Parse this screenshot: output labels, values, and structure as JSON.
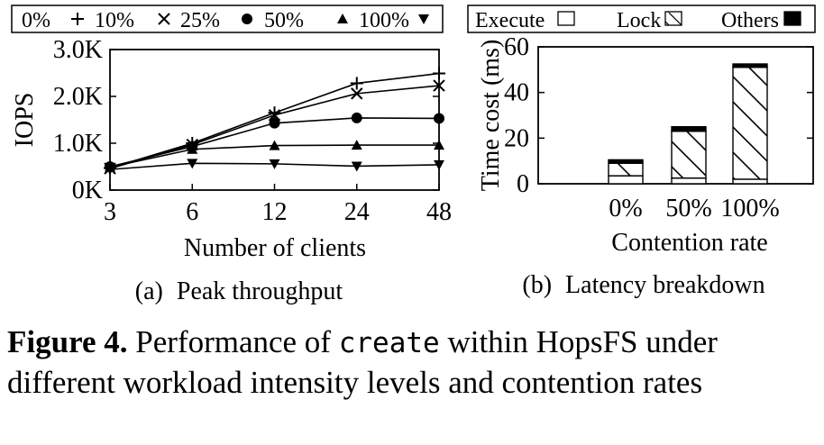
{
  "chart_data": [
    {
      "type": "line",
      "title": "Peak throughput",
      "subcaption_tag": "(a)",
      "xlabel": "Number of clients",
      "ylabel": "IOPS",
      "categories": [
        "3",
        "6",
        "12",
        "24",
        "48"
      ],
      "yticks": [
        "0K",
        "1.0K",
        "2.0K",
        "3.0K"
      ],
      "ylim": [
        0,
        3000
      ],
      "legend_position": "top",
      "grid": false,
      "series": [
        {
          "name": "0%",
          "marker": "plus",
          "values": [
            470,
            1000,
            1650,
            2280,
            2490
          ]
        },
        {
          "name": "10%",
          "marker": "cross",
          "values": [
            460,
            970,
            1600,
            2060,
            2230
          ]
        },
        {
          "name": "25%",
          "marker": "circle",
          "values": [
            500,
            930,
            1430,
            1540,
            1530
          ]
        },
        {
          "name": "50%",
          "marker": "triangle-up",
          "values": [
            490,
            870,
            950,
            960,
            960
          ]
        },
        {
          "name": "100%",
          "marker": "triangle-down",
          "values": [
            440,
            570,
            560,
            510,
            540
          ]
        }
      ]
    },
    {
      "type": "bar",
      "stacked": true,
      "title": "Latency breakdown",
      "subcaption_tag": "(b)",
      "xlabel": "Contention rate",
      "ylabel": "Time cost (ms)",
      "categories": [
        "0%",
        "50%",
        "100%"
      ],
      "yticks": [
        "0",
        "20",
        "40",
        "60"
      ],
      "ylim": [
        0,
        60
      ],
      "legend_position": "top",
      "series": [
        {
          "name": "Execute",
          "pattern": "white",
          "values": [
            3.5,
            2.5,
            2
          ]
        },
        {
          "name": "Lock",
          "pattern": "hatch",
          "values": [
            5.5,
            20.5,
            49
          ]
        },
        {
          "name": "Others",
          "pattern": "black",
          "values": [
            1.5,
            2,
            1.5
          ]
        }
      ]
    }
  ],
  "caption": {
    "label": "Figure 4.",
    "text_before": "Performance of",
    "code": "create",
    "text_after": "within HopsFS under different workload intensity levels and contention rates"
  }
}
